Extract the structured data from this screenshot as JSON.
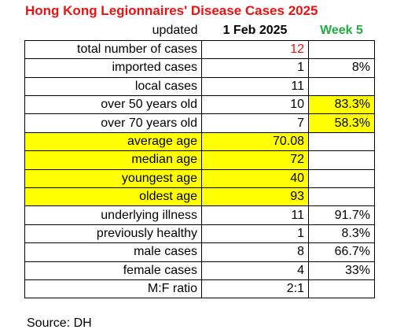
{
  "title": "Hong Kong Legionnaires' Disease Cases 2025",
  "colors": {
    "title": "#ee1111",
    "week": "#22aa44",
    "highlight": "#ffff00",
    "total_value": "#ee1111"
  },
  "header": {
    "updated_label": "updated",
    "date": "1 Feb 2025",
    "week": "Week 5"
  },
  "chart_data": {
    "type": "table",
    "title": "Hong Kong Legionnaires' Disease Cases 2025",
    "columns": [
      "updated",
      "1 Feb 2025",
      "Week 5"
    ],
    "rows": [
      {
        "label": "total number of cases",
        "value": "12",
        "percent": ""
      },
      {
        "label": "imported cases",
        "value": "1",
        "percent": "8%"
      },
      {
        "label": "local cases",
        "value": "11",
        "percent": ""
      },
      {
        "label": "over 50 years old",
        "value": "10",
        "percent": "83.3%"
      },
      {
        "label": "over 70 years old",
        "value": "7",
        "percent": "58.3%"
      },
      {
        "label": "average age",
        "value": "70.08",
        "percent": ""
      },
      {
        "label": "median age",
        "value": "72",
        "percent": ""
      },
      {
        "label": "youngest age",
        "value": "40",
        "percent": ""
      },
      {
        "label": "oldest age",
        "value": "93",
        "percent": ""
      },
      {
        "label": "underlying illness",
        "value": "11",
        "percent": "91.7%"
      },
      {
        "label": "previously healthy",
        "value": "1",
        "percent": "8.3%"
      },
      {
        "label": "male cases",
        "value": "8",
        "percent": "66.7%"
      },
      {
        "label": "female cases",
        "value": "4",
        "percent": "33%"
      },
      {
        "label": "M:F ratio",
        "value": "2:1",
        "percent": ""
      }
    ],
    "highlighted_cells": {
      "label": [
        "average age",
        "median age",
        "youngest age",
        "oldest age"
      ],
      "value": [
        "average age",
        "median age",
        "youngest age",
        "oldest age"
      ],
      "percent": [
        "over 50 years old",
        "over 70 years old"
      ]
    }
  },
  "source": "Source: DH"
}
